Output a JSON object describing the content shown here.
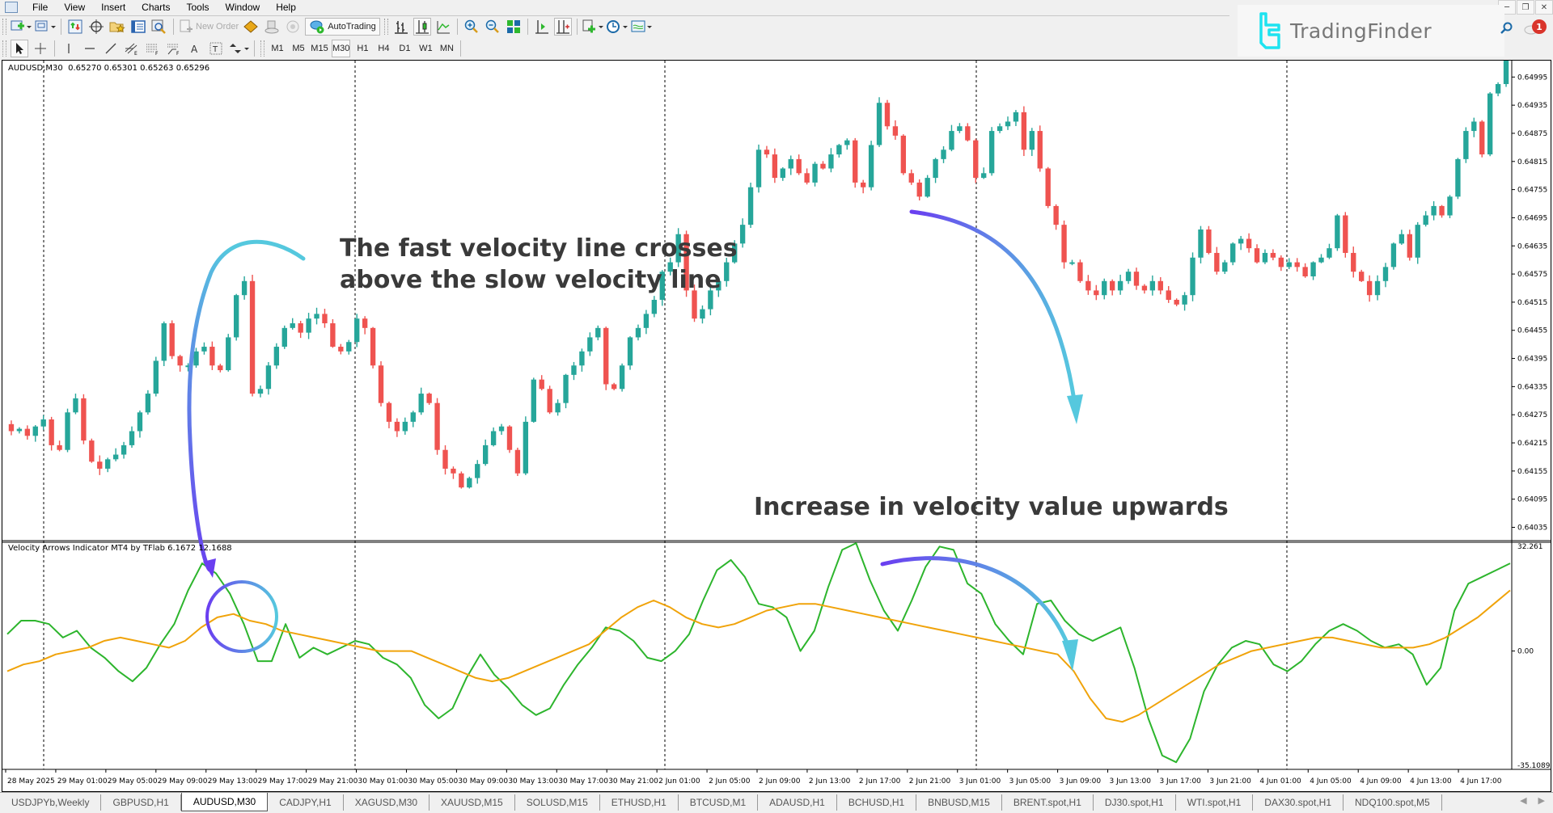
{
  "menu": {
    "items": [
      "File",
      "View",
      "Insert",
      "Charts",
      "Tools",
      "Window",
      "Help"
    ]
  },
  "window_controls": [
    "minimize",
    "restore",
    "close"
  ],
  "toolbar": {
    "new_order_label": "New Order",
    "autotrading_label": "AutoTrading",
    "timeframes": [
      "M1",
      "M5",
      "M15",
      "M30",
      "H1",
      "H4",
      "D1",
      "W1",
      "MN"
    ],
    "active_timeframe": "M30"
  },
  "branding": {
    "name": "TradingFinder",
    "color": "#1ee3f0"
  },
  "notifications": {
    "count": "1"
  },
  "chart": {
    "symbol_line": "AUDUSD,M30  0.65270 0.65301 0.65263 0.65296",
    "indicator_line": "Velocity Arrows Indicator MT4 by TFlab 6.1672 12.1688",
    "colors": {
      "bull": "#26a69a",
      "bear": "#ef5350",
      "fast_line": "#2db52d",
      "slow_line": "#f0a30a",
      "arrow_start": "#6a3ef0",
      "arrow_end": "#55c8de"
    },
    "annotations": {
      "crossover_line1": "The fast velocity line crosses",
      "crossover_line2": "above the slow velocity line",
      "increase": "Increase in velocity value upwards"
    }
  },
  "chart_data": {
    "type": "candlestick",
    "title": "AUDUSD,M30",
    "price_axis_ticks": [
      "0.64995",
      "0.64935",
      "0.64875",
      "0.64815",
      "0.64755",
      "0.64695",
      "0.64635",
      "0.64575",
      "0.64515",
      "0.64455",
      "0.64395",
      "0.64335",
      "0.64275",
      "0.64215",
      "0.64155",
      "0.64095",
      "0.64035"
    ],
    "indicator_axis_ticks": [
      "32.261",
      "0.00",
      "-35.1089"
    ],
    "time_axis_ticks": [
      "28 May 2025",
      "29 May 01:00",
      "29 May 05:00",
      "29 May 09:00",
      "29 May 13:00",
      "29 May 17:00",
      "29 May 21:00",
      "30 May 01:00",
      "30 May 05:00",
      "30 May 09:00",
      "30 May 13:00",
      "30 May 17:00",
      "30 May 21:00",
      "2 Jun 01:00",
      "2 Jun 05:00",
      "2 Jun 09:00",
      "2 Jun 13:00",
      "2 Jun 17:00",
      "2 Jun 21:00",
      "3 Jun 01:00",
      "3 Jun 05:00",
      "3 Jun 09:00",
      "3 Jun 13:00",
      "3 Jun 17:00",
      "3 Jun 21:00",
      "4 Jun 01:00",
      "4 Jun 05:00",
      "4 Jun 09:00",
      "4 Jun 13:00",
      "4 Jun 17:00"
    ],
    "last_ohlc": {
      "open": 0.6527,
      "high": 0.65301,
      "low": 0.65263,
      "close": 0.65296
    },
    "close_path": [
      0.6424,
      0.64245,
      0.6423,
      0.6425,
      0.64265,
      0.6421,
      0.642,
      0.6428,
      0.6431,
      0.6422,
      0.64175,
      0.6416,
      0.6418,
      0.6419,
      0.6421,
      0.6424,
      0.6428,
      0.6432,
      0.6439,
      0.6447,
      0.644,
      0.6438,
      0.6438,
      0.6441,
      0.6442,
      0.6438,
      0.6437,
      0.6444,
      0.6453,
      0.6456,
      0.6432,
      0.6433,
      0.6438,
      0.6442,
      0.6446,
      0.6447,
      0.6445,
      0.6448,
      0.6449,
      0.6447,
      0.6442,
      0.6441,
      0.6443,
      0.6448,
      0.6446,
      0.6438,
      0.643,
      0.6426,
      0.6424,
      0.6426,
      0.6428,
      0.6432,
      0.643,
      0.642,
      0.6416,
      0.6415,
      0.6412,
      0.6414,
      0.6417,
      0.6421,
      0.6424,
      0.6425,
      0.642,
      0.6415,
      0.6426,
      0.6435,
      0.6433,
      0.6428,
      0.643,
      0.6436,
      0.6438,
      0.6441,
      0.6444,
      0.6446,
      0.6434,
      0.6433,
      0.6438,
      0.6444,
      0.6446,
      0.6449,
      0.6452,
      0.6458,
      0.646,
      0.6466,
      0.6454,
      0.6448,
      0.645,
      0.6454,
      0.6456,
      0.646,
      0.6464,
      0.6468,
      0.6476,
      0.6484,
      0.6483,
      0.6478,
      0.648,
      0.6482,
      0.6479,
      0.6477,
      0.6481,
      0.648,
      0.6483,
      0.6485,
      0.6486,
      0.6477,
      0.6476,
      0.6485,
      0.6494,
      0.6489,
      0.6487,
      0.6479,
      0.6477,
      0.6474,
      0.6478,
      0.6482,
      0.6484,
      0.6488,
      0.6489,
      0.6486,
      0.6478,
      0.6479,
      0.6488,
      0.6489,
      0.649,
      0.6492,
      0.6484,
      0.6488,
      0.648,
      0.6472,
      0.6468,
      0.646,
      0.646,
      0.6456,
      0.6454,
      0.6453,
      0.6456,
      0.6454,
      0.6456,
      0.6458,
      0.6455,
      0.6454,
      0.6456,
      0.6454,
      0.6452,
      0.6451,
      0.6453,
      0.6461,
      0.6467,
      0.6462,
      0.6458,
      0.646,
      0.6464,
      0.6465,
      0.6463,
      0.646,
      0.6462,
      0.6461,
      0.6459,
      0.646,
      0.6459,
      0.6457,
      0.646,
      0.6461,
      0.6463,
      0.647,
      0.6462,
      0.6458,
      0.6456,
      0.6453,
      0.6456,
      0.6459,
      0.6464,
      0.6466,
      0.6461,
      0.6468,
      0.647,
      0.6472,
      0.647,
      0.6474,
      0.6482,
      0.6488,
      0.649,
      0.6483,
      0.6496,
      0.6498,
      0.65296
    ],
    "velocity_axis_range": [
      -35.1089,
      32.261
    ],
    "series": [
      {
        "name": "Fast velocity",
        "color": "#2db52d",
        "values": [
          5,
          9,
          9,
          8,
          4,
          6,
          1,
          -2,
          -6,
          -9,
          -5,
          2,
          8,
          18,
          26,
          23,
          17,
          8,
          -3,
          -3,
          8,
          -2,
          1,
          -1,
          1,
          3,
          2,
          -2,
          -4,
          -8,
          -16,
          -20,
          -17,
          -8,
          -1,
          -7,
          -11,
          -16,
          -19,
          -17,
          -10,
          -4,
          1,
          7,
          6,
          3,
          -2,
          -3,
          0,
          5,
          15,
          24,
          27,
          22,
          14,
          13,
          10,
          0,
          6,
          19,
          30,
          32,
          21,
          12,
          6,
          15,
          25,
          31,
          30,
          20,
          17,
          8,
          3,
          -1,
          14,
          15,
          9,
          5,
          3,
          5,
          7,
          -5,
          -20,
          -31,
          -33,
          -26,
          -12,
          -4,
          1,
          3,
          2,
          -4,
          -6,
          -3,
          2,
          6,
          8,
          6,
          3,
          1,
          2,
          -1,
          -10,
          -5,
          12,
          20,
          22,
          24,
          26
        ]
      },
      {
        "name": "Slow velocity",
        "color": "#f0a30a",
        "values": [
          -6,
          -4,
          -3,
          -1,
          0,
          1,
          3,
          4,
          3,
          2,
          1,
          3,
          7,
          10,
          11,
          9,
          8,
          6,
          5,
          4,
          3,
          2,
          1,
          0,
          0,
          0,
          -2,
          -4,
          -6,
          -8,
          -9,
          -8,
          -6,
          -4,
          -2,
          0,
          2,
          6,
          10,
          13,
          15,
          13,
          10,
          8,
          7,
          8,
          10,
          12,
          13,
          14,
          14,
          13,
          12,
          11,
          10,
          9,
          8,
          7,
          6,
          5,
          4,
          3,
          2,
          1,
          0,
          -1,
          -6,
          -14,
          -20,
          -21,
          -19,
          -16,
          -13,
          -10,
          -7,
          -4,
          -2,
          0,
          1,
          2,
          3,
          4,
          4,
          3,
          2,
          1,
          1,
          1,
          2,
          4,
          7,
          10,
          14,
          18
        ]
      }
    ]
  },
  "tabs": {
    "items": [
      "USDJPYb,Weekly",
      "GBPUSD,H1",
      "AUDUSD,M30",
      "CADJPY,H1",
      "XAGUSD,M30",
      "XAUUSD,M15",
      "SOLUSD,M15",
      "ETHUSD,H1",
      "BTCUSD,M1",
      "ADAUSD,H1",
      "BCHUSD,H1",
      "BNBUSD,M15",
      "BRENT.spot,H1",
      "DJ30.spot,H1",
      "WTI.spot,H1",
      "DAX30.spot,H1",
      "NDQ100.spot,M5"
    ],
    "active": "AUDUSD,M30"
  }
}
